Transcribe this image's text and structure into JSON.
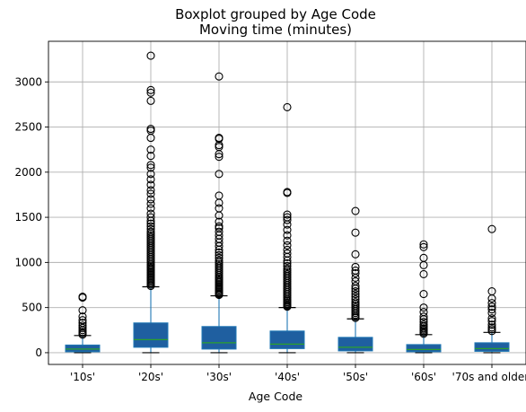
{
  "chart_data": {
    "type": "boxplot",
    "title": "Boxplot grouped by Age Code",
    "subtitle": "Moving time (minutes)",
    "xlabel": "Age Code",
    "ylabel": "",
    "ylim": [
      -130,
      3450
    ],
    "yticks": [
      0,
      500,
      1000,
      1500,
      2000,
      2500,
      3000
    ],
    "grid": true,
    "colors": {
      "box_fill": "#1f5fa0",
      "box_edge": "#1f77b4",
      "whisker": "#1f77b4",
      "median": "#2ca02c",
      "flier": "#000000",
      "grid": "#b0b0b0"
    },
    "categories": [
      "'10s'",
      "'20s'",
      "'30s'",
      "'40s'",
      "'50s'",
      "'60s'",
      "'70s and older'"
    ],
    "boxes": [
      {
        "q1": 10,
        "median": 40,
        "q3": 85,
        "whislo": 0,
        "whishi": 190,
        "fliers": [
          200,
          215,
          230,
          250,
          275,
          300,
          330,
          360,
          400,
          470,
          610,
          620
        ]
      },
      {
        "q1": 60,
        "median": 145,
        "q3": 330,
        "whislo": 0,
        "whishi": 730,
        "fliers": [
          740,
          755,
          770,
          785,
          800,
          815,
          830,
          845,
          860,
          875,
          890,
          905,
          920,
          935,
          950,
          965,
          980,
          1000,
          1020,
          1040,
          1060,
          1080,
          1100,
          1120,
          1140,
          1160,
          1180,
          1200,
          1220,
          1240,
          1260,
          1280,
          1300,
          1320,
          1340,
          1370,
          1400,
          1430,
          1460,
          1500,
          1540,
          1600,
          1650,
          1700,
          1760,
          1800,
          1860,
          1920,
          1980,
          2050,
          2080,
          2180,
          2250,
          2380,
          2460,
          2480,
          2790,
          2880,
          2910,
          3290
        ]
      },
      {
        "q1": 40,
        "median": 110,
        "q3": 290,
        "whislo": 0,
        "whishi": 630,
        "fliers": [
          640,
          650,
          660,
          675,
          690,
          705,
          720,
          735,
          750,
          765,
          780,
          795,
          810,
          825,
          840,
          860,
          880,
          900,
          920,
          940,
          960,
          980,
          1000,
          1020,
          1050,
          1080,
          1110,
          1140,
          1180,
          1220,
          1260,
          1300,
          1340,
          1380,
          1400,
          1450,
          1520,
          1600,
          1660,
          1740,
          1980,
          2170,
          2200,
          2280,
          2300,
          2370,
          2380,
          3060
        ]
      },
      {
        "q1": 45,
        "median": 95,
        "q3": 240,
        "whislo": 0,
        "whishi": 500,
        "fliers": [
          510,
          520,
          530,
          545,
          560,
          575,
          590,
          610,
          630,
          650,
          670,
          690,
          710,
          730,
          750,
          770,
          790,
          810,
          830,
          850,
          870,
          890,
          910,
          930,
          960,
          990,
          1020,
          1060,
          1100,
          1140,
          1190,
          1240,
          1300,
          1360,
          1420,
          1470,
          1500,
          1530,
          1770,
          1780,
          2720
        ]
      },
      {
        "q1": 20,
        "median": 60,
        "q3": 170,
        "whislo": 0,
        "whishi": 375,
        "fliers": [
          385,
          400,
          420,
          440,
          460,
          480,
          500,
          520,
          540,
          560,
          590,
          620,
          650,
          680,
          710,
          740,
          790,
          830,
          880,
          910,
          950,
          1090,
          1330,
          1570
        ]
      },
      {
        "q1": 10,
        "median": 35,
        "q3": 90,
        "whislo": 0,
        "whishi": 200,
        "fliers": [
          210,
          225,
          240,
          255,
          270,
          290,
          310,
          340,
          370,
          400,
          450,
          500,
          650,
          870,
          970,
          1050,
          1170,
          1200
        ]
      },
      {
        "q1": 15,
        "median": 45,
        "q3": 110,
        "whislo": 0,
        "whishi": 225,
        "fliers": [
          240,
          260,
          280,
          310,
          350,
          380,
          440,
          480,
          510,
          550,
          600,
          680,
          1370
        ]
      }
    ]
  }
}
